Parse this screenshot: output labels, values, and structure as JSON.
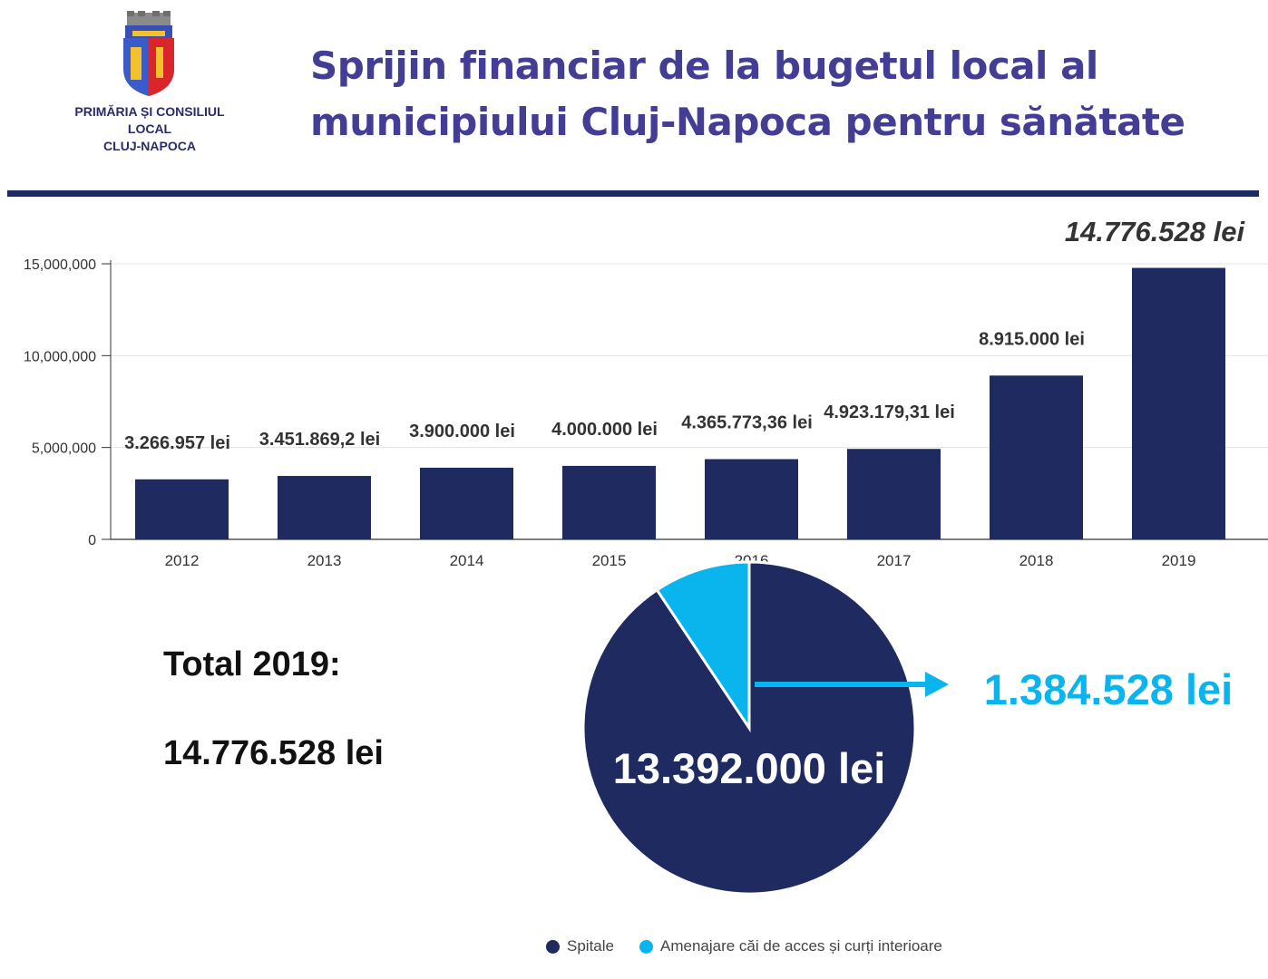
{
  "header": {
    "logo_text_line1": "PRIMĂRIA ȘI CONSILIUL LOCAL",
    "logo_text_line2": "CLUJ-NAPOCA",
    "title_line1": "Sprijin financiar de la bugetul local al",
    "title_line2": "municipiului Cluj-Napoca pentru sănătate"
  },
  "colors": {
    "title": "#433d96",
    "bar": "#1e2a60",
    "pie_main": "#1e2a60",
    "pie_secondary": "#0ab4ec",
    "highlight": "#0ab4ec"
  },
  "chart_data": [
    {
      "type": "bar",
      "categories": [
        "2012",
        "2013",
        "2014",
        "2015",
        "2016",
        "2017",
        "2018",
        "2019"
      ],
      "values": [
        3266957,
        3451869.2,
        3900000,
        4000000,
        4365773.36,
        4923179.31,
        8915000,
        14776528
      ],
      "data_labels": [
        "3.266.957 lei",
        "3.451.869,2 lei",
        "3.900.000 lei",
        "4.000.000 lei",
        "4.365.773,36 lei",
        "4.923.179,31 lei",
        "8.915.000 lei",
        "14.776.528 lei"
      ],
      "yticks": [
        0,
        5000000,
        10000000,
        15000000
      ],
      "ytick_labels": [
        "0",
        "5,000,000",
        "10,000,000",
        "15,000,000"
      ],
      "ylim": [
        0,
        15000000
      ],
      "grid": true
    },
    {
      "type": "pie",
      "labels": [
        "Spitale",
        "Amenajare căi de acces și curți interioare"
      ],
      "values": [
        13392000,
        1384528
      ],
      "value_labels": [
        "13.392.000 lei",
        "1.384.528 lei"
      ],
      "legend_position": "bottom"
    }
  ],
  "total": {
    "label": "Total 2019:",
    "value": "14.776.528 lei"
  }
}
